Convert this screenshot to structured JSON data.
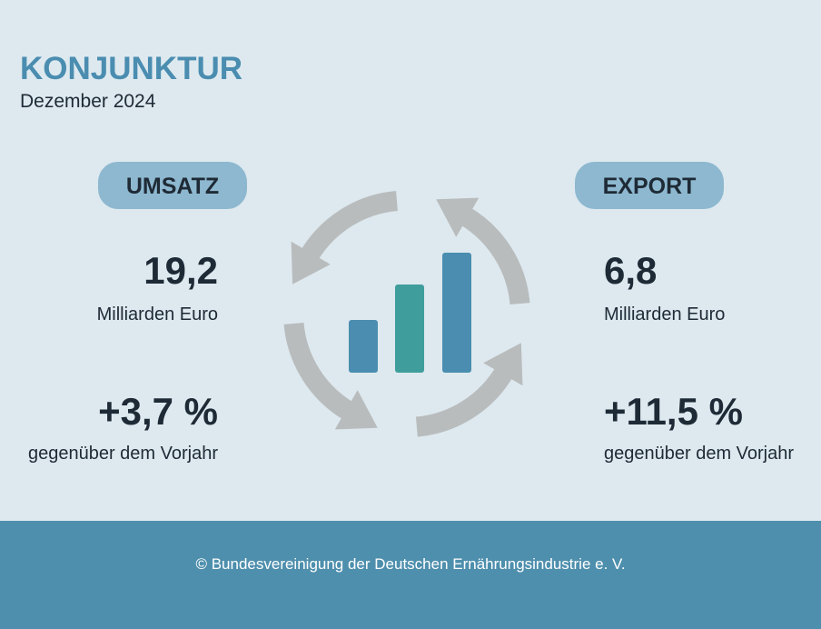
{
  "header": {
    "title": "KONJUNKTUR",
    "subtitle": "Dezember 2024"
  },
  "left": {
    "label": "UMSATZ",
    "value": "19,2",
    "unit": "Milliarden Euro",
    "change": "+3,7 %",
    "change_note": "gegenüber dem Vorjahr"
  },
  "right": {
    "label": "EXPORT",
    "value": "6,8",
    "unit": "Milliarden Euro",
    "change": "+11,5 %",
    "change_note": "gegenüber dem Vorjahr"
  },
  "footer": {
    "text": "© Bundesvereinigung der Deutschen Ernährungsindustrie e. V."
  }
}
